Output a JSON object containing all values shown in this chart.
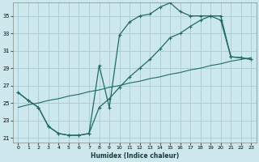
{
  "xlabel": "Humidex (Indice chaleur)",
  "bg_color": "#cce8ec",
  "grid_color": "#aacfd4",
  "line_color": "#1e6b65",
  "xlim": [
    -0.5,
    23.5
  ],
  "ylim": [
    20.5,
    36.5
  ],
  "xticks": [
    0,
    1,
    2,
    3,
    4,
    5,
    6,
    7,
    8,
    9,
    10,
    11,
    12,
    13,
    14,
    15,
    16,
    17,
    18,
    19,
    20,
    21,
    22,
    23
  ],
  "yticks": [
    21,
    23,
    25,
    27,
    29,
    31,
    33,
    35
  ],
  "line1_x": [
    0,
    1,
    2,
    3,
    4,
    5,
    6,
    7,
    8,
    9,
    10,
    11,
    12,
    13,
    14,
    15,
    16,
    17,
    18,
    19,
    20,
    21,
    22,
    23
  ],
  "line1_y": [
    26.2,
    25.3,
    24.5,
    22.3,
    21.5,
    21.3,
    21.3,
    21.5,
    29.3,
    24.5,
    32.8,
    34.3,
    35.0,
    35.2,
    36.0,
    36.5,
    35.5,
    35.0,
    35.0,
    35.0,
    34.5,
    30.3,
    30.2,
    30.0
  ],
  "line2_x": [
    0,
    1,
    2,
    3,
    4,
    5,
    6,
    7,
    8,
    9,
    10,
    11,
    12,
    13,
    14,
    15,
    16,
    17,
    18,
    19,
    20,
    21,
    22,
    23
  ],
  "line2_y": [
    26.2,
    25.3,
    24.5,
    22.3,
    21.5,
    21.3,
    21.3,
    21.5,
    24.5,
    25.5,
    26.8,
    28.0,
    29.0,
    30.0,
    31.2,
    32.5,
    33.0,
    33.8,
    34.5,
    35.0,
    35.0,
    30.3,
    30.2,
    30.0
  ],
  "line3_x": [
    0,
    1,
    2,
    3,
    4,
    5,
    6,
    7,
    8,
    9,
    10,
    11,
    12,
    13,
    14,
    15,
    16,
    17,
    18,
    19,
    20,
    21,
    22,
    23
  ],
  "line3_y": [
    24.5,
    24.8,
    25.0,
    25.3,
    25.5,
    25.8,
    26.0,
    26.3,
    26.5,
    26.8,
    27.0,
    27.3,
    27.5,
    27.8,
    28.0,
    28.3,
    28.5,
    28.8,
    29.0,
    29.3,
    29.5,
    29.8,
    30.0,
    30.2
  ]
}
